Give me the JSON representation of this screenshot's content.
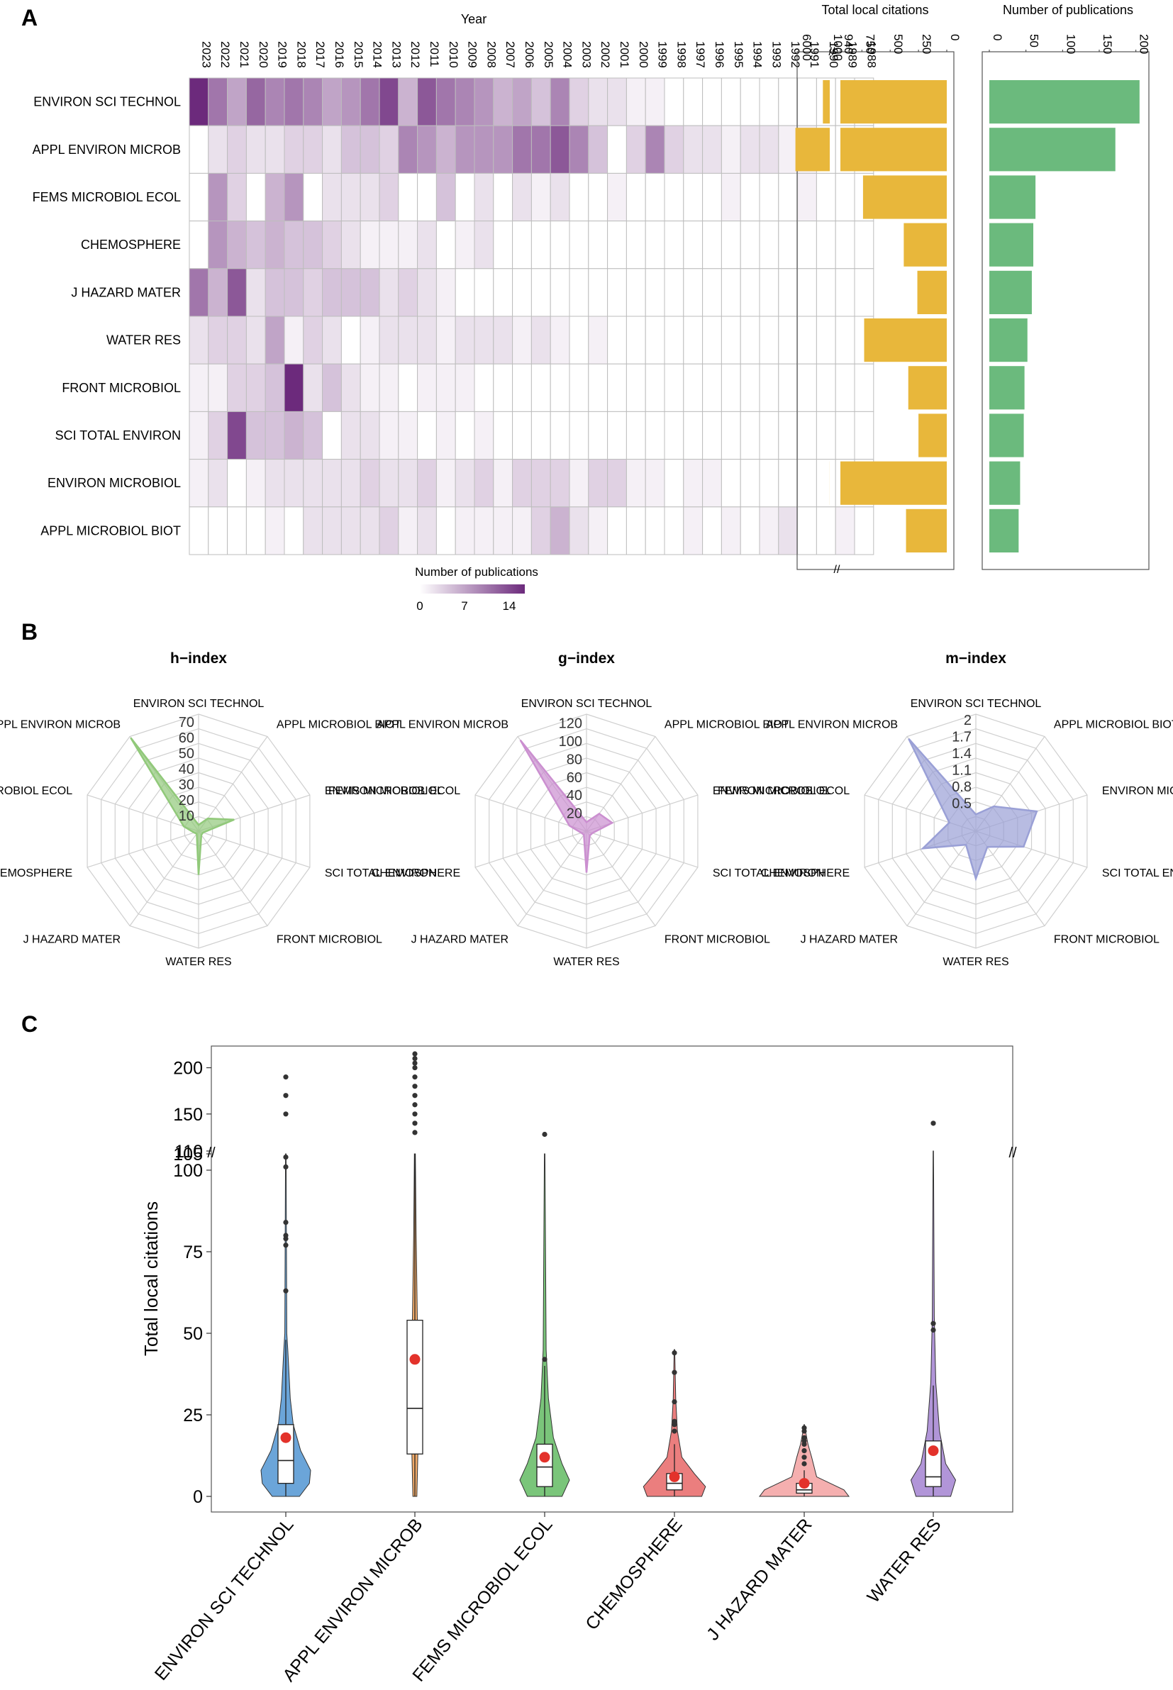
{
  "panel_labels": {
    "a": "A",
    "b": "B",
    "c": "C"
  },
  "colors": {
    "heat_low": "#ffffff",
    "heat_high": "#6c2a7c",
    "bar_citations": "#e8b73b",
    "bar_pubs": "#6bba7d",
    "radar_h": "#91c97a",
    "radar_g": "#cb8fd0",
    "radar_m": "#9aa0d6",
    "violin": [
      "#5b9bd5",
      "#f0a25a",
      "#6bbf6b",
      "#e97070",
      "#f4a6a6",
      "#a98ad4"
    ],
    "mean_dot": "#e3322b"
  },
  "chart_data": [
    {
      "id": "heatmap",
      "type": "heatmap",
      "title": "Year",
      "journals": [
        "ENVIRON SCI TECHNOL",
        "APPL ENVIRON MICROB",
        "FEMS MICROBIOL ECOL",
        "CHEMOSPHERE",
        "J HAZARD MATER",
        "WATER RES",
        "FRONT MICROBIOL",
        "SCI TOTAL ENVIRON",
        "ENVIRON MICROBIOL",
        "APPL MICROBIOL BIOT"
      ],
      "years": [
        "2023",
        "2022",
        "2021",
        "2020",
        "2019",
        "2018",
        "2017",
        "2016",
        "2015",
        "2014",
        "2013",
        "2012",
        "2011",
        "2010",
        "2009",
        "2008",
        "2007",
        "2006",
        "2005",
        "2004",
        "2003",
        "2002",
        "2001",
        "2000",
        "1999",
        "1998",
        "1997",
        "1996",
        "1995",
        "1994",
        "1993",
        "1992",
        "1991",
        "1990",
        "1989",
        "1988"
      ],
      "values": [
        [
          14,
          9,
          6,
          10,
          8,
          9,
          8,
          6,
          7,
          9,
          12,
          5,
          11,
          9,
          8,
          7,
          5,
          6,
          4,
          8,
          3,
          2,
          2,
          1,
          1,
          0,
          0,
          0,
          0,
          0,
          0,
          0,
          0,
          0,
          0,
          0
        ],
        [
          0,
          2,
          3,
          2,
          2,
          3,
          3,
          2,
          4,
          4,
          3,
          8,
          7,
          5,
          7,
          7,
          7,
          9,
          9,
          11,
          8,
          4,
          0,
          3,
          8,
          3,
          2,
          2,
          1,
          2,
          2,
          1,
          1,
          0,
          0,
          0
        ],
        [
          0,
          7,
          3,
          0,
          5,
          7,
          0,
          2,
          2,
          2,
          3,
          0,
          0,
          4,
          0,
          2,
          0,
          2,
          1,
          2,
          0,
          0,
          1,
          0,
          0,
          0,
          0,
          0,
          1,
          0,
          0,
          0,
          1,
          0,
          0,
          0
        ],
        [
          0,
          7,
          5,
          4,
          5,
          4,
          4,
          3,
          2,
          1,
          1,
          1,
          2,
          0,
          1,
          2,
          0,
          0,
          0,
          0,
          0,
          0,
          0,
          0,
          0,
          0,
          0,
          0,
          0,
          0,
          0,
          0,
          0,
          0,
          0,
          0
        ],
        [
          9,
          5,
          11,
          2,
          4,
          4,
          3,
          4,
          4,
          4,
          2,
          3,
          2,
          1,
          0,
          0,
          0,
          0,
          0,
          0,
          0,
          0,
          0,
          0,
          0,
          0,
          0,
          0,
          0,
          0,
          0,
          0,
          0,
          0,
          0,
          0
        ],
        [
          2,
          3,
          3,
          2,
          6,
          1,
          3,
          2,
          0,
          1,
          2,
          2,
          2,
          1,
          2,
          2,
          2,
          1,
          2,
          1,
          0,
          1,
          0,
          0,
          0,
          0,
          0,
          0,
          0,
          0,
          0,
          0,
          0,
          0,
          0,
          0
        ],
        [
          1,
          1,
          3,
          3,
          4,
          14,
          2,
          4,
          2,
          1,
          1,
          0,
          1,
          1,
          1,
          0,
          0,
          0,
          0,
          0,
          0,
          0,
          0,
          0,
          0,
          0,
          0,
          0,
          0,
          0,
          0,
          0,
          0,
          0,
          0,
          0
        ],
        [
          1,
          3,
          12,
          4,
          4,
          5,
          4,
          0,
          2,
          2,
          1,
          1,
          0,
          1,
          0,
          1,
          0,
          0,
          0,
          0,
          0,
          0,
          0,
          0,
          0,
          0,
          0,
          0,
          0,
          0,
          0,
          0,
          0,
          0,
          0,
          0
        ],
        [
          1,
          2,
          0,
          1,
          2,
          2,
          2,
          2,
          2,
          3,
          2,
          2,
          3,
          1,
          2,
          3,
          1,
          3,
          3,
          3,
          1,
          3,
          3,
          1,
          1,
          0,
          1,
          1,
          0,
          0,
          0,
          0,
          0,
          0,
          0,
          0
        ],
        [
          0,
          0,
          0,
          0,
          1,
          0,
          2,
          2,
          2,
          2,
          3,
          1,
          2,
          0,
          1,
          1,
          1,
          1,
          3,
          5,
          2,
          1,
          0,
          0,
          0,
          0,
          1,
          0,
          1,
          0,
          1,
          2,
          0,
          0,
          1,
          0
        ]
      ],
      "legend_title": "Number of publications",
      "legend_ticks": [
        0,
        7,
        14
      ]
    },
    {
      "id": "total-local-citations-bars",
      "type": "bar",
      "orientation": "horizontal-reversed",
      "title": "Total local citations",
      "categories": [
        "ENVIRON SCI TECHNOL",
        "APPL ENVIRON MICROB",
        "FEMS MICROBIOL ECOL",
        "CHEMOSPHERE",
        "J HAZARD MATER",
        "WATER RES",
        "FRONT MICROBIOL",
        "SCI TOTAL ENVIRON",
        "ENVIRON MICROBIOL",
        "APPL MICROBIOL BIOT"
      ],
      "values": [
        2100,
        6500,
        740,
        380,
        260,
        730,
        340,
        250,
        1010,
        360
      ],
      "axis_break": {
        "lower_max": 940,
        "upper_min": 1000,
        "upper_max": 6000
      },
      "ticks": [
        "6000",
        "1000",
        "940",
        "750",
        "500",
        "250",
        "0"
      ]
    },
    {
      "id": "publications-bars",
      "type": "bar",
      "orientation": "horizontal",
      "title": "Number of publications",
      "categories": [
        "ENVIRON SCI TECHNOL",
        "APPL ENVIRON MICROB",
        "FEMS MICROBIOL ECOL",
        "CHEMOSPHERE",
        "J HAZARD MATER",
        "WATER RES",
        "FRONT MICROBIOL",
        "SCI TOTAL ENVIRON",
        "ENVIRON MICROBIOL",
        "APPL MICROBIOL BIOT"
      ],
      "values": [
        205,
        172,
        63,
        60,
        58,
        52,
        48,
        47,
        42,
        40
      ],
      "xlim": [
        0,
        210
      ],
      "ticks": [
        0,
        50,
        100,
        150,
        200
      ]
    },
    {
      "id": "h-index",
      "type": "radar",
      "title": "h−index",
      "axes": [
        "ENVIRON SCI TECHNOL",
        "APPL MICROBIOL BIOT",
        "ENVIRON MICROBIOL",
        "SCI TOTAL ENVIRON",
        "FRONT MICROBIOL",
        "WATER RES",
        "J HAZARD MATER",
        "CHEMOSPHERE",
        "FEMS MICROBIOL ECOL",
        "APPL ENVIRON MICROB"
      ],
      "values": [
        4,
        10,
        24,
        3,
        3,
        28,
        2,
        3,
        10,
        74
      ],
      "max": 75,
      "scale_labels": [
        "10",
        "20",
        "30",
        "40",
        "50",
        "60",
        "70"
      ],
      "scale_values": [
        10,
        20,
        30,
        40,
        50,
        60,
        70
      ]
    },
    {
      "id": "g-index",
      "type": "radar",
      "title": "g−index",
      "axes": [
        "ENVIRON SCI TECHNOL",
        "APPL MICROBIOL BIOT",
        "ENVIRON MICROBIOL",
        "SCI TOTAL ENVIRON",
        "FRONT MICROBIOL",
        "WATER RES",
        "J HAZARD MATER",
        "CHEMOSPHERE",
        "FEMS MICROBIOL ECOL",
        "APPL ENVIRON MICROB"
      ],
      "values": [
        10,
        24,
        30,
        7,
        6,
        46,
        5,
        6,
        20,
        125
      ],
      "max": 130,
      "scale_labels": [
        "20",
        "40",
        "60",
        "80",
        "100",
        "120"
      ],
      "scale_values": [
        20,
        40,
        60,
        80,
        100,
        120
      ]
    },
    {
      "id": "m-index",
      "type": "radar",
      "title": "m−index",
      "axes": [
        "ENVIRON SCI TECHNOL",
        "APPL MICROBIOL BIOT",
        "ENVIRON MICROBIOL",
        "SCI TOTAL ENVIRON",
        "FRONT MICROBIOL",
        "WATER RES",
        "J HAZARD MATER",
        "CHEMOSPHERE",
        "FEMS MICROBIOL ECOL",
        "APPL ENVIRON MICROB"
      ],
      "values": [
        0.3,
        0.55,
        1.15,
        0.9,
        0.35,
        0.85,
        0.3,
        1.0,
        0.5,
        2.05
      ],
      "max": 2.1,
      "scale_labels": [
        "0.5",
        "0.8",
        "1.1",
        "1.4",
        "1.7",
        "2"
      ],
      "scale_values": [
        0.5,
        0.8,
        1.1,
        1.4,
        1.7,
        2.0
      ]
    },
    {
      "id": "violin",
      "type": "violin",
      "ylabel": "Total local citations",
      "categories": [
        "ENVIRON SCI TECHNOL",
        "APPL ENVIRON MICROB",
        "FEMS MICROBIOL ECOL",
        "CHEMOSPHERE",
        "J HAZARD MATER",
        "WATER RES"
      ],
      "axis_break": {
        "lower_max": 105,
        "upper_min": 110,
        "upper_max": 215
      },
      "ticks_lower": [
        0,
        25,
        50,
        75,
        100,
        105
      ],
      "ticks_upper": [
        110,
        150,
        200
      ],
      "stats": [
        {
          "min": 0,
          "q1": 4,
          "median": 11,
          "q3": 22,
          "max": 48,
          "mean": 18,
          "outliers": [
            63,
            77,
            79,
            80,
            84,
            101,
            104,
            150,
            170,
            190
          ],
          "width_profile": [
            [
              0,
              0.55
            ],
            [
              4,
              0.95
            ],
            [
              8,
              1.0
            ],
            [
              14,
              0.6
            ],
            [
              22,
              0.3
            ],
            [
              30,
              0.18
            ],
            [
              45,
              0.08
            ],
            [
              50,
              0.04
            ],
            [
              105,
              0.01
            ]
          ]
        },
        {
          "min": 0,
          "q1": 13,
          "median": 27,
          "q3": 54,
          "max": 105,
          "mean": 42,
          "outliers": [
            130,
            140,
            150,
            160,
            170,
            180,
            190,
            200,
            205,
            210,
            215
          ],
          "width_profile": [
            [
              0,
              0.08
            ],
            [
              13,
              0.12
            ],
            [
              27,
              0.14
            ],
            [
              54,
              0.1
            ],
            [
              80,
              0.05
            ],
            [
              105,
              0.02
            ]
          ]
        },
        {
          "min": 0,
          "q1": 3,
          "median": 9,
          "q3": 16,
          "max": 40,
          "mean": 12,
          "outliers": [
            42,
            128
          ],
          "width_profile": [
            [
              0,
              0.7
            ],
            [
              5,
              1.0
            ],
            [
              10,
              0.7
            ],
            [
              18,
              0.35
            ],
            [
              30,
              0.15
            ],
            [
              45,
              0.06
            ],
            [
              105,
              0.01
            ]
          ]
        },
        {
          "min": 0,
          "q1": 2,
          "median": 4,
          "q3": 7,
          "max": 16,
          "mean": 6,
          "outliers": [
            20,
            22,
            23,
            29,
            38,
            44
          ],
          "width_profile": [
            [
              0,
              1.1
            ],
            [
              3,
              1.25
            ],
            [
              7,
              0.8
            ],
            [
              12,
              0.3
            ],
            [
              20,
              0.12
            ],
            [
              30,
              0.05
            ],
            [
              45,
              0.01
            ]
          ]
        },
        {
          "min": 0,
          "q1": 1,
          "median": 2,
          "q3": 4,
          "max": 8,
          "mean": 4,
          "outliers": [
            10,
            12,
            14,
            16,
            17,
            18,
            20,
            21
          ],
          "width_profile": [
            [
              0,
              1.8
            ],
            [
              2,
              1.6
            ],
            [
              6,
              0.5
            ],
            [
              12,
              0.3
            ],
            [
              16,
              0.15
            ],
            [
              20,
              0.05
            ],
            [
              22,
              0.01
            ]
          ]
        },
        {
          "min": 0,
          "q1": 3,
          "median": 6,
          "q3": 17,
          "max": 34,
          "mean": 14,
          "outliers": [
            51,
            53,
            140
          ],
          "width_profile": [
            [
              0,
              0.7
            ],
            [
              5,
              0.9
            ],
            [
              10,
              0.5
            ],
            [
              20,
              0.25
            ],
            [
              35,
              0.1
            ],
            [
              55,
              0.04
            ],
            [
              110,
              0.01
            ]
          ]
        }
      ]
    }
  ]
}
